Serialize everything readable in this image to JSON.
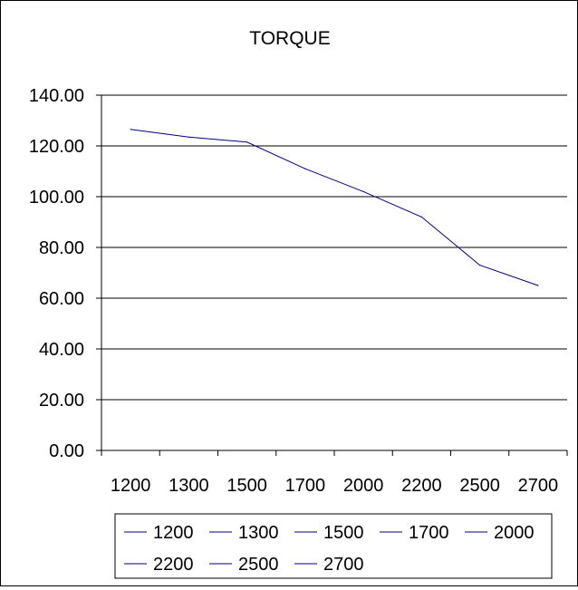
{
  "chart_data": {
    "type": "line",
    "title": "TORQUE",
    "categories": [
      "1200",
      "1300",
      "1500",
      "1700",
      "2000",
      "2200",
      "2500",
      "2700"
    ],
    "values": [
      126.5,
      123.5,
      121.5,
      111.0,
      102.0,
      92.0,
      73.0,
      65.0
    ],
    "ylim": [
      0,
      140
    ],
    "yticks": [
      "0.00",
      "20.00",
      "40.00",
      "60.00",
      "80.00",
      "100.00",
      "120.00",
      "140.00"
    ],
    "grid": true,
    "line_color": "#000080",
    "legend": {
      "placement": "bottom",
      "entries": [
        "1200",
        "1300",
        "1500",
        "1700",
        "2000",
        "2200",
        "2500",
        "2700"
      ]
    }
  }
}
